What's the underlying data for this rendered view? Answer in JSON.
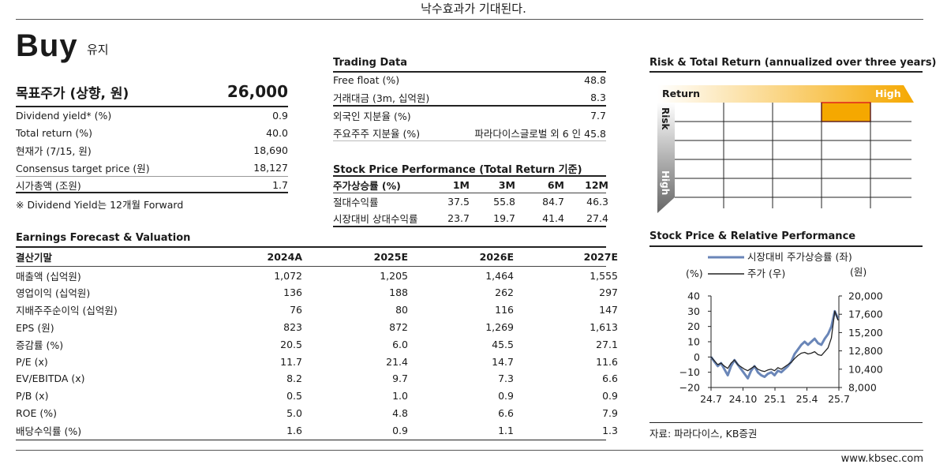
{
  "header_text": "낙수효과가 기대된다.",
  "rating": {
    "label": "Buy",
    "sub": "유지"
  },
  "target_price": {
    "label": "목표주가 (상향, 원)",
    "value": "26,000"
  },
  "left_rows": [
    {
      "label": "Dividend yield* (%)",
      "value": "0.9"
    },
    {
      "label": "Total return (%)",
      "value": "40.0"
    },
    {
      "label": "현재가 (7/15, 원)",
      "value": "18,690"
    },
    {
      "label": "Consensus target price (원)",
      "value": "18,127"
    },
    {
      "label": "시가총액 (조원)",
      "value": "1.7"
    }
  ],
  "footnote": "※ Dividend Yield는 12개월 Forward",
  "trading_data": {
    "title": "Trading Data",
    "rows": [
      {
        "label": "Free float (%)",
        "value": "48.8"
      },
      {
        "label": "거래대금 (3m, 십억원)",
        "value": "8.3"
      },
      {
        "label": "외국인 지분율 (%)",
        "value": "7.7"
      },
      {
        "label": "주요주주 지분율 (%)",
        "value": "파라다이스글로벌 외 6 인 45.8"
      }
    ]
  },
  "performance": {
    "title": "Stock Price Performance (Total Return 기준)",
    "headers": [
      "주가상승률 (%)",
      "1M",
      "3M",
      "6M",
      "12M"
    ],
    "rows": [
      [
        "절대수익률",
        "37.5",
        "55.8",
        "84.7",
        "46.3"
      ],
      [
        "시장대비 상대수익률",
        "23.7",
        "19.7",
        "41.4",
        "27.4"
      ]
    ]
  },
  "earnings": {
    "title": "Earnings Forecast & Valuation",
    "headers": [
      "결산기말",
      "2024A",
      "2025E",
      "2026E",
      "2027E"
    ],
    "rows": [
      [
        "매출액 (십억원)",
        "1,072",
        "1,205",
        "1,464",
        "1,555"
      ],
      [
        "영업이익 (십억원)",
        "136",
        "188",
        "262",
        "297"
      ],
      [
        "지배주주순이익 (십억원)",
        "76",
        "80",
        "116",
        "147"
      ],
      [
        "EPS (원)",
        "823",
        "872",
        "1,269",
        "1,613"
      ],
      [
        "증감률 (%)",
        "20.5",
        "6.0",
        "45.5",
        "27.1"
      ],
      [
        "P/E (x)",
        "11.7",
        "21.4",
        "14.7",
        "11.6"
      ],
      [
        "EV/EBITDA (x)",
        "8.2",
        "9.7",
        "7.3",
        "6.6"
      ],
      [
        "P/B (x)",
        "0.5",
        "1.0",
        "0.9",
        "0.9"
      ],
      [
        "ROE (%)",
        "5.0",
        "4.8",
        "6.6",
        "7.9"
      ],
      [
        "배당수익률 (%)",
        "1.6",
        "0.9",
        "1.1",
        "1.3"
      ]
    ]
  },
  "risk": {
    "title": "Risk & Total Return (annualized over three years)",
    "return_label": "Return",
    "high_label": "High",
    "risk_label": "Risk",
    "risk_high_label": "High",
    "highlight_color": "#f5a800"
  },
  "stock_chart": {
    "title": "Stock Price & Relative Performance",
    "source": "자료: 파라다이스, KB증권"
  },
  "chart_data": {
    "type": "line",
    "legend": [
      "시장대비 주가상승률 (좌)",
      "주가 (우)"
    ],
    "left_unit": "(%)",
    "right_unit": "(원)",
    "left_ticks": [
      "40",
      "30",
      "20",
      "10",
      "0",
      "−10",
      "−20"
    ],
    "right_ticks": [
      "20,000",
      "17,600",
      "15,200",
      "12,800",
      "10,400",
      "8,000"
    ],
    "x_ticks": [
      "24.7",
      "24.10",
      "25.1",
      "25.4",
      "25.7"
    ],
    "ylim_left": [
      -20,
      40
    ],
    "ylim_right": [
      8000,
      20000
    ],
    "colors": {
      "relative": "#6a86b8",
      "price": "#222222"
    },
    "series": [
      {
        "name": "시장대비 주가상승률 (좌)",
        "axis": "left",
        "values": [
          0,
          -3,
          -6,
          -4,
          -8,
          -12,
          -6,
          -2,
          -5,
          -8,
          -11,
          -14,
          -9,
          -6,
          -10,
          -12,
          -13,
          -11,
          -10,
          -12,
          -9,
          -10,
          -8,
          -6,
          -3,
          2,
          5,
          8,
          10,
          8,
          10,
          12,
          9,
          8,
          12,
          15,
          20,
          30,
          25
        ]
      },
      {
        "name": "주가 (우)",
        "axis": "right",
        "values": [
          12000,
          11500,
          11000,
          11200,
          10800,
          10500,
          11200,
          11600,
          11000,
          10700,
          10400,
          10200,
          10500,
          10800,
          10400,
          10200,
          10100,
          10300,
          10400,
          10200,
          10600,
          10400,
          10700,
          11000,
          11300,
          11800,
          12200,
          12500,
          12600,
          12400,
          12500,
          12700,
          12300,
          12200,
          12700,
          13200,
          14500,
          18000,
          16800
        ]
      }
    ]
  },
  "footer": "www.kbsec.com"
}
